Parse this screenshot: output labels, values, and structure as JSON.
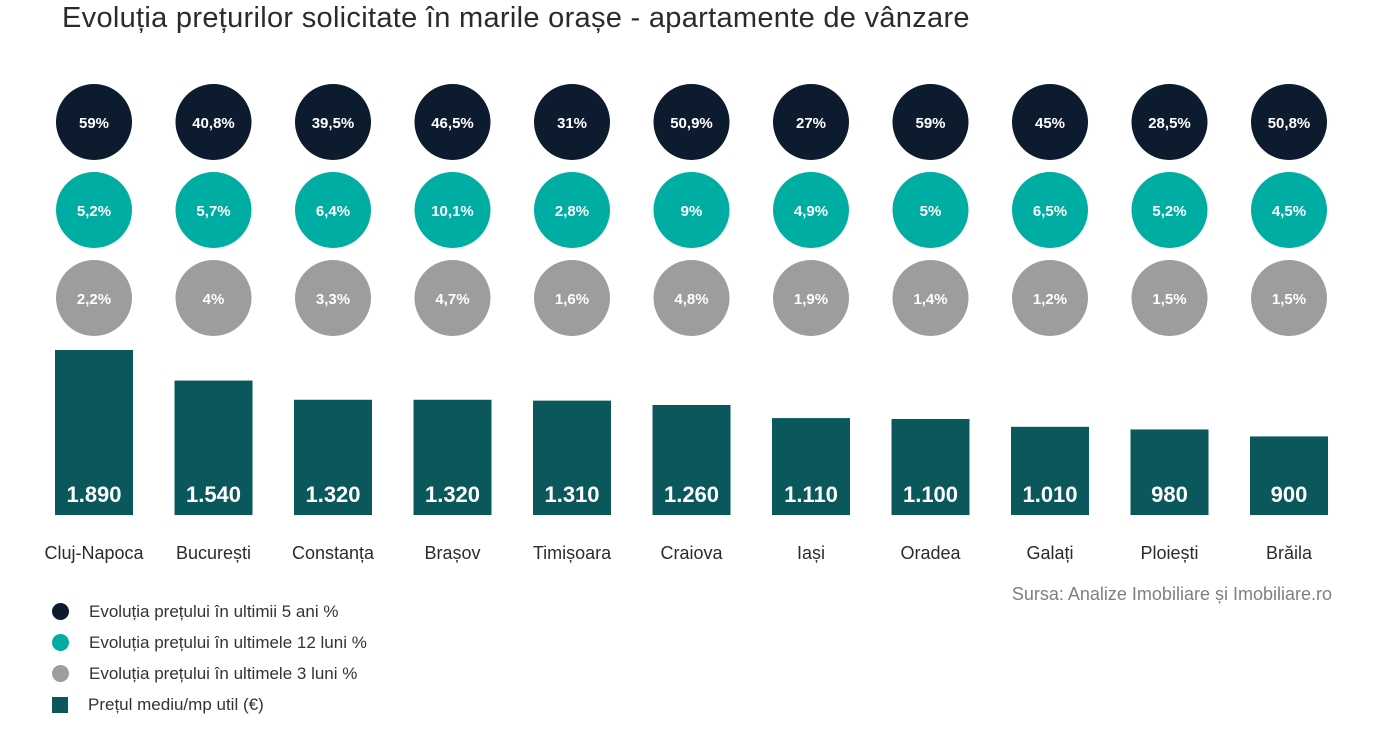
{
  "title": "Evoluția prețurilor solicitate în marile orașe - apartamente de vânzare",
  "source": "Sursa: Analize Imobiliare și Imobiliare.ro",
  "colors": {
    "five_years": "#0d1b2e",
    "twelve_months": "#00ada2",
    "three_months": "#9d9d9d",
    "bar": "#0b585c",
    "bar_label": "#ffffff",
    "category_label": "#2b2b2b"
  },
  "legend": [
    {
      "label": "Evoluția prețului în ultimii 5 ani %",
      "marker": "dot",
      "color": "#0d1b2e"
    },
    {
      "label": "Evoluția prețului în ultimele 12 luni %",
      "marker": "dot",
      "color": "#00ada2"
    },
    {
      "label": "Evoluția prețului în ultimele 3 luni %",
      "marker": "dot",
      "color": "#9d9d9d"
    },
    {
      "label": "Prețul mediu/mp util (€)",
      "marker": "square",
      "color": "#0b585c"
    }
  ],
  "chart_data": {
    "type": "bar",
    "categories": [
      "Cluj-Napoca",
      "București",
      "Constanța",
      "Brașov",
      "Timișoara",
      "Craiova",
      "Iași",
      "Oradea",
      "Galați",
      "Ploiești",
      "Brăila"
    ],
    "series": [
      {
        "name": "Prețul mediu/mp util (€)",
        "values": [
          1890,
          1540,
          1320,
          1320,
          1310,
          1260,
          1110,
          1100,
          1010,
          980,
          900
        ],
        "labels": [
          "1.890",
          "1.540",
          "1.320",
          "1.320",
          "1.310",
          "1.260",
          "1.110",
          "1.100",
          "1.010",
          "980",
          "900"
        ]
      }
    ],
    "bubble_rows": [
      {
        "name": "Evoluția prețului în ultimii 5 ani %",
        "values": [
          59,
          40.8,
          39.5,
          46.5,
          31,
          50.9,
          27,
          59,
          45,
          28.5,
          50.8
        ],
        "labels": [
          "59%",
          "40,8%",
          "39,5%",
          "46,5%",
          "31%",
          "50,9%",
          "27%",
          "59%",
          "45%",
          "28,5%",
          "50,8%"
        ]
      },
      {
        "name": "Evoluția prețului în ultimele 12 luni %",
        "values": [
          5.2,
          5.7,
          6.4,
          10.1,
          2.8,
          9,
          4.9,
          5,
          6.5,
          5.2,
          4.5
        ],
        "labels": [
          "5,2%",
          "5,7%",
          "6,4%",
          "10,1%",
          "2,8%",
          "9%",
          "4,9%",
          "5%",
          "6,5%",
          "5,2%",
          "4,5%"
        ]
      },
      {
        "name": "Evoluția prețului în ultimele 3 luni %",
        "values": [
          2.2,
          4,
          3.3,
          4.7,
          1.6,
          4.8,
          1.9,
          1.4,
          1.2,
          1.5,
          1.5
        ],
        "labels": [
          "2,2%",
          "4%",
          "3,3%",
          "4,7%",
          "1,6%",
          "4,8%",
          "1,9%",
          "1,4%",
          "1,2%",
          "1,5%",
          "1,5%"
        ]
      }
    ],
    "grid": false,
    "legend_position": "bottom-left"
  }
}
